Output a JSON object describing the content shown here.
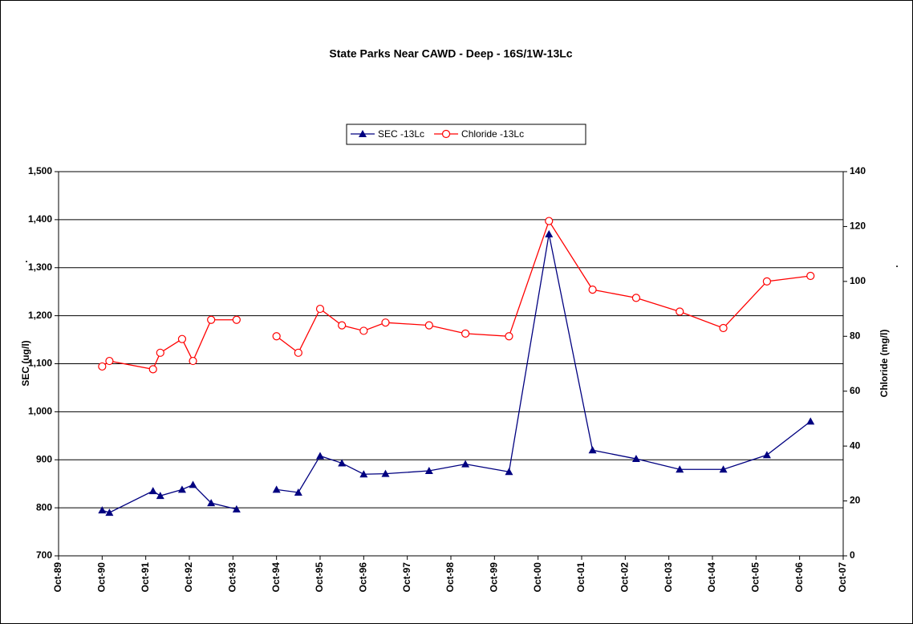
{
  "chart_data": {
    "type": "line",
    "title": "State Parks Near CAWD - Deep - 16S/1W-13Lc",
    "y_label": "SEC (ug/l)",
    "y2_label": "Chloride (mg/l)",
    "annotations": [
      ".",
      "."
    ],
    "x": [
      "1990-10",
      "1990-12",
      "1991-12",
      "1992-02",
      "1992-08",
      "1992-11",
      "1993-04",
      "1993-11",
      "1994-04",
      "1994-10",
      "1995-04",
      "1995-10",
      "1996-04",
      "1996-10",
      "1997-04",
      "1998-04",
      "1999-02",
      "2000-02",
      "2001-01",
      "2002-01",
      "2003-01",
      "2004-01",
      "2005-01",
      "2006-01",
      "2007-01"
    ],
    "series": [
      {
        "name": "SEC -13Lc",
        "color": "#000080",
        "marker": "triangle",
        "axis": "y",
        "values": [
          795,
          790,
          835,
          825,
          838,
          848,
          810,
          797,
          null,
          838,
          832,
          908,
          893,
          870,
          871,
          877,
          891,
          875,
          1370,
          920,
          902,
          880,
          880,
          910,
          980
        ]
      },
      {
        "name": "Chloride -13Lc",
        "color": "#ff0000",
        "marker": "circle",
        "axis": "y2",
        "values": [
          69,
          71,
          68,
          74,
          79,
          71,
          86,
          86,
          null,
          80,
          74,
          90,
          84,
          82,
          85,
          84,
          81,
          80,
          122,
          97,
          94,
          89,
          83,
          100,
          102
        ]
      }
    ],
    "xlim": [
      "1989-10",
      "2007-10"
    ],
    "xticks": [
      {
        "value": "1989-10",
        "label": "Oct-89"
      },
      {
        "value": "1990-10",
        "label": "Oct-90"
      },
      {
        "value": "1991-10",
        "label": "Oct-91"
      },
      {
        "value": "1992-10",
        "label": "Oct-92"
      },
      {
        "value": "1993-10",
        "label": "Oct-93"
      },
      {
        "value": "1994-10",
        "label": "Oct-94"
      },
      {
        "value": "1995-10",
        "label": "Oct-95"
      },
      {
        "value": "1996-10",
        "label": "Oct-96"
      },
      {
        "value": "1997-10",
        "label": "Oct-97"
      },
      {
        "value": "1998-10",
        "label": "Oct-98"
      },
      {
        "value": "1999-10",
        "label": "Oct-99"
      },
      {
        "value": "2000-10",
        "label": "Oct-00"
      },
      {
        "value": "2001-10",
        "label": "Oct-01"
      },
      {
        "value": "2002-10",
        "label": "Oct-02"
      },
      {
        "value": "2003-10",
        "label": "Oct-03"
      },
      {
        "value": "2004-10",
        "label": "Oct-04"
      },
      {
        "value": "2005-10",
        "label": "Oct-05"
      },
      {
        "value": "2006-10",
        "label": "Oct-06"
      },
      {
        "value": "2007-10",
        "label": "Oct-07"
      }
    ],
    "ylim": [
      700,
      1500
    ],
    "yticks": [
      700,
      800,
      900,
      {
        "value": 1000,
        "label": "1,000"
      },
      {
        "value": 1100,
        "label": "1,100"
      },
      {
        "value": 1200,
        "label": "1,200"
      },
      {
        "value": 1300,
        "label": "1,300"
      },
      {
        "value": 1400,
        "label": "1,400"
      },
      {
        "value": 1500,
        "label": "1,500"
      }
    ],
    "y2lim": [
      0,
      140
    ],
    "y2ticks": [
      0,
      20,
      40,
      60,
      80,
      100,
      120,
      140
    ],
    "grid": true,
    "legend": "top"
  }
}
